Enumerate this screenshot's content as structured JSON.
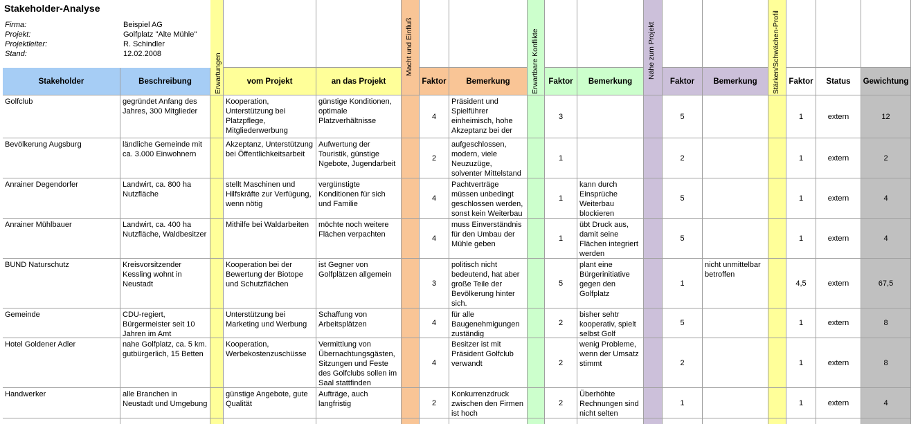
{
  "header": {
    "title": "Stakeholder-Analyse",
    "info": [
      {
        "label": "Firma:",
        "value": "Beispiel AG"
      },
      {
        "label": "Projekt:",
        "value": "Golfplatz \"Alte Mühle\""
      },
      {
        "label": "Projektleiter:",
        "value": "R. Schindler"
      },
      {
        "label": "Stand:",
        "value": "12.02.2008"
      }
    ]
  },
  "table": {
    "group_labels": [
      "Erwartungen",
      "Macht und Einfluß",
      "Erwartbare Konflikte",
      "Nähe zum Projekt",
      "Stärken/Schwächen-Profil"
    ],
    "columns": [
      "Stakeholder",
      "Beschreibung",
      "vom Projekt",
      "an das Projekt",
      "Faktor",
      "Bemerkung",
      "Faktor",
      "Bemerkung",
      "Faktor",
      "Bemerkung",
      "Faktor",
      "Status",
      "Gewichtung"
    ],
    "rows": [
      [
        "Golfclub",
        "gegründet Anfang des Jahres, 300 Mitglieder",
        "Kooperation, Unterstützung bei Platzpflege, Mitgliederwerbung",
        "günstige Konditionen, optimale Platzverhältnisse",
        "4",
        "Präsident und Spielführer einheimisch, hohe Akzeptanz bei der",
        "3",
        null,
        "5",
        null,
        "1",
        "extern",
        "12"
      ],
      [
        "Bevölkerung Augsburg",
        "ländliche Gemeinde mit ca. 3.000 Einwohnern",
        "Akzeptanz, Unterstützung bei Öffentlichkeitsarbeit",
        "Aufwertung der Touristik, günstige Ngebote, Jugendarbeit",
        "2",
        "aufgeschlossen, modern, viele Neuzuzüge, solventer Mittelstand",
        "1",
        null,
        "2",
        null,
        "1",
        "extern",
        "2"
      ],
      [
        "Anrainer Degendorfer",
        "Landwirt, ca. 800 ha Nutzfläche",
        "stellt Maschinen und Hilfskräfte zur Verfügung, wenn nötig",
        "vergünstigte Konditionen für sich und Familie",
        "4",
        "Pachtverträge müssen unbedingt geschlossen werden, sonst kein Weiterbau",
        "1",
        "kann durch Einsprüche Weiterbau blockieren",
        "5",
        null,
        "1",
        "extern",
        "4"
      ],
      [
        "Anrainer Mühlbauer",
        "Landwirt, ca. 400 ha Nutzfläche, Waldbesitzer",
        "Mithilfe bei Waldarbeiten",
        "möchte noch weitere Flächen verpachten",
        "4",
        "muss Einverständnis für den Umbau der Mühle geben",
        "1",
        "übt Druck aus, damit seine Flächen integriert werden",
        "5",
        null,
        "1",
        "extern",
        "4"
      ],
      [
        "BUND Naturschutz",
        "Kreisvorsitzender Kessling wohnt in Neustadt",
        "Kooperation bei der Bewertung der Biotope und Schutzflächen",
        "ist Gegner von Golfplätzen allgemein",
        "3",
        "politisch nicht bedeutend, hat aber große Teile der Bevölkerung hinter sich.",
        "5",
        "plant eine Bürgerinitiative gegen den Golfplatz",
        "1",
        "nicht unmittelbar betroffen",
        "4,5",
        "extern",
        "67,5"
      ],
      [
        "Gemeinde",
        "CDU-regiert, Bürgermeister seit 10 Jahren im Amt",
        "Unterstützung bei Marketing und Werbung",
        "Schaffung von Arbeitsplätzen",
        "4",
        "für alle Baugenehmigungen zuständig",
        "2",
        "bisher sehtr kooperativ, spielt selbst Golf",
        "5",
        null,
        "1",
        "extern",
        "8"
      ],
      [
        "Hotel Goldener Adler",
        "nahe Golfplatz, ca. 5 km. gutbürgerlich, 15 Betten",
        "Kooperation, Werbekostenzuschüsse",
        "Vermittlung von Übernachtungsgästen, Sitzungen und Feste des Golfclubs sollen im Saal stattfinden",
        "4",
        "Besitzer ist mit Präsident Golfclub verwandt",
        "2",
        "wenig Probleme, wenn der Umsatz stimmt",
        "2",
        null,
        "1",
        "extern",
        "8"
      ],
      [
        "Handwerker",
        "alle Branchen in Neustadt und Umgebung",
        "günstige Angebote, gute Qualität",
        "Aufträge, auch langfristig",
        "2",
        "Konkurrenzdruck zwischen den Firmen ist hoch",
        "2",
        "Überhöhte Rechnungen sind nicht selten",
        "1",
        null,
        "1",
        "extern",
        "4"
      ]
    ]
  }
}
